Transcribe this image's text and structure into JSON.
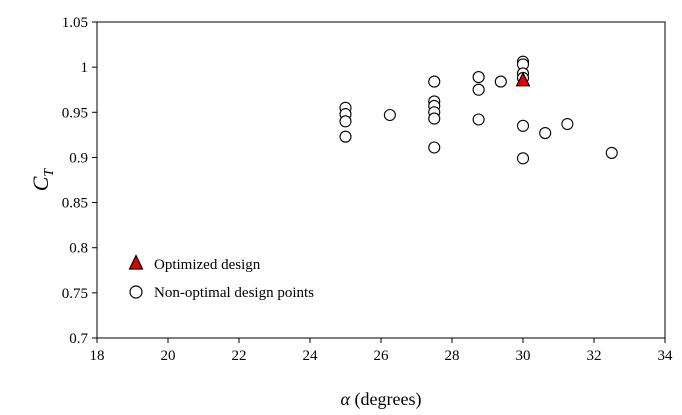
{
  "chart_data": {
    "type": "scatter",
    "title": "",
    "xlabel": {
      "symbol": "α",
      "text": " (degrees)"
    },
    "ylabel": {
      "symbol": "C",
      "subscript": "T"
    },
    "xlim": [
      18,
      34
    ],
    "ylim": [
      0.7,
      1.05
    ],
    "xticks": [
      "18",
      "20",
      "22",
      "24",
      "26",
      "28",
      "30",
      "32",
      "34"
    ],
    "yticks": [
      "0.7",
      "0.75",
      "0.8",
      "0.85",
      "0.9",
      "0.95",
      "1",
      "1.05"
    ],
    "grid": false,
    "legend_position": "bottom-left",
    "series": [
      {
        "name": "Non-optimal design points",
        "marker": "circle",
        "color": "#ffffff",
        "edge_color": "#000000",
        "points": [
          [
            25.0,
            0.955
          ],
          [
            25.0,
            0.948
          ],
          [
            25.0,
            0.94
          ],
          [
            25.0,
            0.923
          ],
          [
            26.25,
            0.947
          ],
          [
            27.5,
            0.984
          ],
          [
            27.5,
            0.962
          ],
          [
            27.5,
            0.957
          ],
          [
            27.5,
            0.95
          ],
          [
            27.5,
            0.943
          ],
          [
            27.5,
            0.911
          ],
          [
            28.75,
            0.989
          ],
          [
            28.75,
            0.975
          ],
          [
            28.75,
            0.942
          ],
          [
            29.375,
            0.984
          ],
          [
            30.0,
            1.006
          ],
          [
            30.0,
            1.003
          ],
          [
            30.0,
            0.993
          ],
          [
            30.0,
            0.988
          ],
          [
            30.0,
            0.935
          ],
          [
            30.0,
            0.899
          ],
          [
            30.625,
            0.927
          ],
          [
            31.25,
            0.937
          ],
          [
            32.5,
            0.905
          ]
        ]
      },
      {
        "name": "Optimized design",
        "marker": "triangle",
        "color": "#e00000",
        "edge_color": "#000000",
        "points": [
          [
            30.0,
            0.985
          ]
        ]
      }
    ]
  }
}
